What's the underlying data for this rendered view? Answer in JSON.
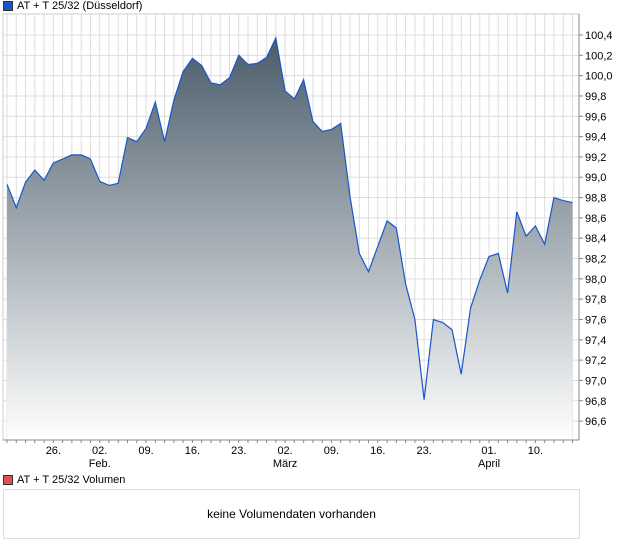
{
  "colors": {
    "line": "#1a56c8",
    "area_top": "#4a5c6a",
    "grid": "#dddddd",
    "volume_legend": "#e05050"
  },
  "chart_data": {
    "type": "area",
    "title": "AT + T 25/32 (Düsseldorf)",
    "ylim": [
      96.4,
      100.6
    ],
    "yticks": [
      "100,4",
      "100,2",
      "100,0",
      "99,8",
      "99,6",
      "99,4",
      "99,2",
      "99,0",
      "98,8",
      "98,6",
      "98,4",
      "98,2",
      "98,0",
      "97,8",
      "97,6",
      "97,4",
      "97,2",
      "97,0",
      "96,8",
      "96,6"
    ],
    "ytick_values": [
      100.4,
      100.2,
      100.0,
      99.8,
      99.6,
      99.4,
      99.2,
      99.0,
      98.8,
      98.6,
      98.4,
      98.2,
      98.0,
      97.8,
      97.6,
      97.4,
      97.2,
      97.0,
      96.8,
      96.6
    ],
    "xticks": [
      {
        "label": "26.",
        "index": 5
      },
      {
        "label": "02.",
        "index": 10
      },
      {
        "label": "09.",
        "index": 15
      },
      {
        "label": "16.",
        "index": 20
      },
      {
        "label": "23.",
        "index": 25
      },
      {
        "label": "02.",
        "index": 30
      },
      {
        "label": "09.",
        "index": 35
      },
      {
        "label": "16.",
        "index": 40
      },
      {
        "label": "23.",
        "index": 45
      },
      {
        "label": "01.",
        "index": 52
      },
      {
        "label": "10.",
        "index": 57
      }
    ],
    "months": [
      {
        "label": "Feb.",
        "index": 10
      },
      {
        "label": "März",
        "index": 30
      },
      {
        "label": "April",
        "index": 52
      }
    ],
    "grid": true,
    "values": [
      98.93,
      98.7,
      98.95,
      99.07,
      98.97,
      99.14,
      99.18,
      99.22,
      99.22,
      99.18,
      98.96,
      98.92,
      98.94,
      99.39,
      99.35,
      99.48,
      99.74,
      99.35,
      99.76,
      100.04,
      100.17,
      100.1,
      99.93,
      99.91,
      99.98,
      100.2,
      100.11,
      100.12,
      100.18,
      100.37,
      99.85,
      99.77,
      99.96,
      99.55,
      99.45,
      99.47,
      99.53,
      98.81,
      98.25,
      98.07,
      98.32,
      98.57,
      98.5,
      97.95,
      97.6,
      96.81,
      97.6,
      97.57,
      97.5,
      97.06,
      97.71,
      97.99,
      98.22,
      98.25,
      97.86,
      98.66,
      98.42,
      98.52,
      98.34,
      98.8,
      98.77,
      98.75
    ]
  },
  "volume": {
    "legend": "AT + T 25/32 Volumen",
    "message": "keine Volumendaten vorhanden"
  }
}
